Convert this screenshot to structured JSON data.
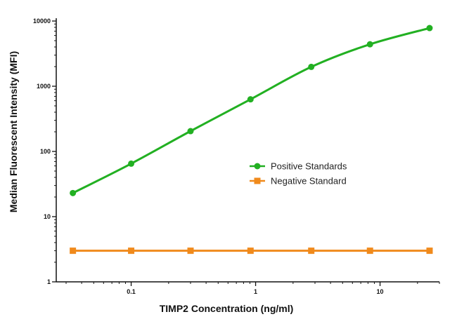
{
  "chart_data": {
    "type": "line",
    "xlabel": "TIMP2 Concentration (ng/ml)",
    "ylabel": "Median Fluorescent Intensity (MFI)",
    "x_scale": "log",
    "y_scale": "log",
    "xlim": [
      0.025,
      30
    ],
    "ylim": [
      1,
      10000
    ],
    "x_ticks": [
      0.1,
      1,
      10
    ],
    "x_tick_labels": [
      "0.1",
      "1",
      "10"
    ],
    "y_ticks": [
      1,
      10,
      100,
      1000,
      10000
    ],
    "y_tick_labels": [
      "1",
      "10",
      "100",
      "1000",
      "10000"
    ],
    "grid": false,
    "legend_position": "center-right",
    "series": [
      {
        "name": "Positive Standards",
        "color": "#22b022",
        "marker": "circle",
        "x": [
          0.034,
          0.1,
          0.3,
          0.91,
          2.8,
          8.3,
          25
        ],
        "y": [
          23,
          65,
          205,
          630,
          1980,
          4400,
          7800
        ]
      },
      {
        "name": "Negative Standard",
        "color": "#f08a1c",
        "marker": "square",
        "x": [
          0.034,
          0.1,
          0.3,
          0.91,
          2.8,
          8.3,
          25
        ],
        "y": [
          3,
          3,
          3,
          3,
          3,
          3,
          3
        ]
      }
    ]
  }
}
